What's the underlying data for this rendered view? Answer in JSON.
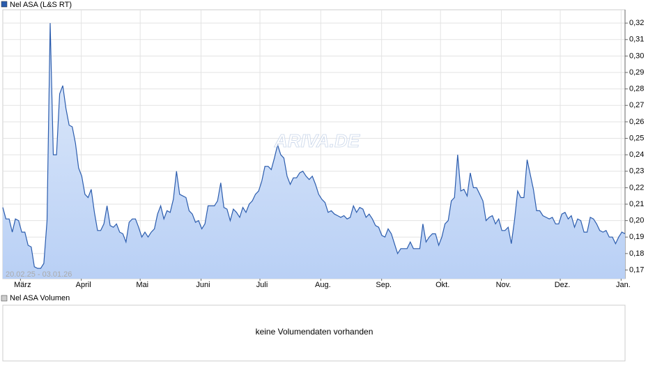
{
  "chart_data": {
    "type": "line",
    "series": [
      {
        "name": "Nel ASA (L&S RT)",
        "color": "#2b5cad",
        "values": [
          0.208,
          0.201,
          0.201,
          0.193,
          0.201,
          0.2,
          0.193,
          0.193,
          0.185,
          0.184,
          0.172,
          0.171,
          0.171,
          0.174,
          0.2,
          0.32,
          0.24,
          0.24,
          0.277,
          0.282,
          0.268,
          0.258,
          0.257,
          0.247,
          0.232,
          0.227,
          0.216,
          0.214,
          0.219,
          0.205,
          0.194,
          0.194,
          0.198,
          0.209,
          0.197,
          0.196,
          0.198,
          0.193,
          0.192,
          0.187,
          0.199,
          0.201,
          0.201,
          0.196,
          0.19,
          0.193,
          0.19,
          0.193,
          0.195,
          0.204,
          0.209,
          0.201,
          0.206,
          0.205,
          0.213,
          0.23,
          0.216,
          0.215,
          0.214,
          0.206,
          0.204,
          0.199,
          0.2,
          0.195,
          0.198,
          0.209,
          0.209,
          0.209,
          0.212,
          0.223,
          0.208,
          0.207,
          0.2,
          0.207,
          0.205,
          0.202,
          0.208,
          0.205,
          0.21,
          0.212,
          0.216,
          0.218,
          0.224,
          0.233,
          0.233,
          0.231,
          0.238,
          0.246,
          0.24,
          0.238,
          0.227,
          0.222,
          0.226,
          0.226,
          0.229,
          0.23,
          0.227,
          0.225,
          0.227,
          0.222,
          0.216,
          0.213,
          0.211,
          0.205,
          0.206,
          0.204,
          0.203,
          0.202,
          0.203,
          0.201,
          0.202,
          0.209,
          0.205,
          0.208,
          0.207,
          0.202,
          0.204,
          0.201,
          0.197,
          0.196,
          0.191,
          0.19,
          0.195,
          0.192,
          0.186,
          0.18,
          0.183,
          0.183,
          0.183,
          0.187,
          0.183,
          0.183,
          0.183,
          0.198,
          0.187,
          0.19,
          0.192,
          0.192,
          0.185,
          0.19,
          0.198,
          0.2,
          0.212,
          0.214,
          0.24,
          0.218,
          0.219,
          0.215,
          0.229,
          0.22,
          0.22,
          0.216,
          0.212,
          0.2,
          0.202,
          0.203,
          0.198,
          0.201,
          0.194,
          0.194,
          0.196,
          0.186,
          0.2,
          0.218,
          0.214,
          0.214,
          0.237,
          0.228,
          0.219,
          0.206,
          0.206,
          0.203,
          0.202,
          0.201,
          0.202,
          0.198,
          0.198,
          0.204,
          0.205,
          0.201,
          0.203,
          0.196,
          0.201,
          0.2,
          0.193,
          0.193,
          0.202,
          0.201,
          0.198,
          0.194,
          0.193,
          0.194,
          0.19,
          0.19,
          0.186,
          0.19,
          0.193,
          0.192
        ]
      }
    ],
    "xlim": [
      "2025-02-20",
      "2026-01-03"
    ],
    "xticks": [
      {
        "value": "2025-03-01",
        "label": "März"
      },
      {
        "value": "2025-04-01",
        "label": "April"
      },
      {
        "value": "2025-05-01",
        "label": "Mai"
      },
      {
        "value": "2025-06-01",
        "label": "Juni"
      },
      {
        "value": "2025-07-01",
        "label": "Juli"
      },
      {
        "value": "2025-08-01",
        "label": "Aug."
      },
      {
        "value": "2025-09-01",
        "label": "Sep."
      },
      {
        "value": "2025-10-01",
        "label": "Okt."
      },
      {
        "value": "2025-11-01",
        "label": "Nov."
      },
      {
        "value": "2025-12-01",
        "label": "Dez."
      },
      {
        "value": "2026-01-01",
        "label": "Jan."
      }
    ],
    "ylim": [
      0.1647,
      0.3281
    ],
    "yticks": [
      {
        "value": 0.17,
        "label": "0,17"
      },
      {
        "value": 0.18,
        "label": "0,18"
      },
      {
        "value": 0.19,
        "label": "0,19"
      },
      {
        "value": 0.2,
        "label": "0,20"
      },
      {
        "value": 0.21,
        "label": "0,21"
      },
      {
        "value": 0.22,
        "label": "0,22"
      },
      {
        "value": 0.23,
        "label": "0,23"
      },
      {
        "value": 0.24,
        "label": "0,24"
      },
      {
        "value": 0.25,
        "label": "0,25"
      },
      {
        "value": 0.26,
        "label": "0,26"
      },
      {
        "value": 0.27,
        "label": "0,27"
      },
      {
        "value": 0.28,
        "label": "0,28"
      },
      {
        "value": 0.29,
        "label": "0,29"
      },
      {
        "value": 0.3,
        "label": "0,30"
      },
      {
        "value": 0.31,
        "label": "0,31"
      },
      {
        "value": 0.32,
        "label": "0,32"
      }
    ],
    "grid": true,
    "date_range": "20.02.25 - 03.01.26",
    "watermark": "ARIVA.DE"
  },
  "volume_panel": {
    "legend": "Nel ASA Volumen",
    "message": "keine Volumendaten vorhanden"
  }
}
